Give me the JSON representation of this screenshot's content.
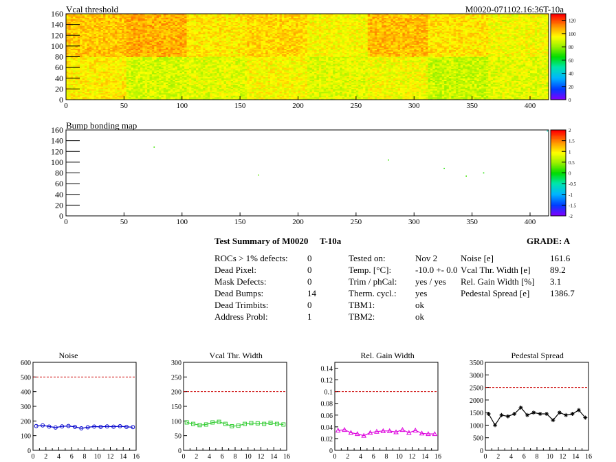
{
  "header": {
    "left_title": "Vcal threshold",
    "right_title": "M0020-071102.16:36T-10a"
  },
  "colors": {
    "frame": "#000000",
    "limit_line": "#cc0000",
    "noise": "#0000cc",
    "vcal": "#33cc33",
    "gain": "#dd00dd",
    "pedestal": "#000000"
  },
  "chart_data": [
    {
      "type": "heatmap",
      "title": "Vcal threshold",
      "x_ticks": [
        "0",
        "50",
        "100",
        "150",
        "200",
        "250",
        "300",
        "350",
        "400"
      ],
      "y_ticks": [
        "0",
        "20",
        "40",
        "60",
        "80",
        "100",
        "120",
        "140",
        "160"
      ],
      "xlim": [
        0,
        416
      ],
      "ylim": [
        0,
        160
      ],
      "z_ticks": [
        "0",
        "20",
        "40",
        "60",
        "80",
        "100",
        "120"
      ],
      "zlim": [
        0,
        130
      ],
      "roc_grid": {
        "cols": 8,
        "rows": 2,
        "roc_cols": 52,
        "roc_rows": 80
      },
      "roc_mean": [
        [
          98,
          90,
          92,
          96,
          92,
          95,
          88,
          92
        ],
        [
          105,
          108,
          99,
          102,
          96,
          106,
          100,
          95
        ]
      ],
      "noise_level": 8
    },
    {
      "type": "heatmap",
      "title": "Bump bonding map",
      "x_ticks": [
        "0",
        "50",
        "100",
        "150",
        "200",
        "250",
        "300",
        "350",
        "400"
      ],
      "y_ticks": [
        "0",
        "20",
        "40",
        "60",
        "80",
        "100",
        "120",
        "140",
        "160"
      ],
      "xlim": [
        0,
        416
      ],
      "ylim": [
        0,
        160
      ],
      "z_ticks": [
        "-2",
        "-1.5",
        "-1",
        "-0.5",
        "0",
        "0.5",
        "1",
        "1.5",
        "2"
      ],
      "zlim": [
        -2,
        2
      ],
      "points": [
        [
          76,
          128,
          0.2
        ],
        [
          166,
          76,
          0.3
        ],
        [
          278,
          104,
          0.2
        ],
        [
          326,
          88,
          0.1
        ],
        [
          345,
          74,
          0.2
        ],
        [
          360,
          80,
          0.1
        ],
        [
          415,
          158,
          -0.6
        ]
      ]
    },
    {
      "type": "line",
      "title": "Noise",
      "x": [
        0,
        1,
        2,
        3,
        4,
        5,
        6,
        7,
        8,
        9,
        10,
        11,
        12,
        13,
        14,
        15
      ],
      "values": [
        165,
        170,
        162,
        155,
        163,
        166,
        160,
        150,
        157,
        162,
        160,
        163,
        161,
        164,
        160,
        158
      ],
      "xlim": [
        0,
        16
      ],
      "ylim": [
        0,
        600
      ],
      "limit": 500,
      "x_ticks": [
        "0",
        "2",
        "4",
        "6",
        "8",
        "10",
        "12",
        "14",
        "16"
      ],
      "y_ticks": [
        "0",
        "100",
        "200",
        "300",
        "400",
        "500",
        "600"
      ],
      "marker": "circle"
    },
    {
      "type": "line",
      "title": "Vcal Thr. Width",
      "x": [
        0,
        1,
        2,
        3,
        4,
        5,
        6,
        7,
        8,
        9,
        10,
        11,
        12,
        13,
        14,
        15
      ],
      "values": [
        95,
        90,
        86,
        88,
        95,
        97,
        90,
        82,
        84,
        90,
        93,
        92,
        90,
        94,
        90,
        88
      ],
      "xlim": [
        0,
        16
      ],
      "ylim": [
        0,
        300
      ],
      "limit": 200,
      "x_ticks": [
        "0",
        "2",
        "4",
        "6",
        "8",
        "10",
        "12",
        "14",
        "16"
      ],
      "y_ticks": [
        "0",
        "50",
        "100",
        "150",
        "200",
        "250",
        "300"
      ],
      "marker": "square"
    },
    {
      "type": "line",
      "title": "Rel. Gain Width",
      "x": [
        0,
        1,
        2,
        3,
        4,
        5,
        6,
        7,
        8,
        9,
        10,
        11,
        12,
        13,
        14,
        15
      ],
      "values": [
        0.034,
        0.035,
        0.03,
        0.028,
        0.025,
        0.03,
        0.032,
        0.033,
        0.033,
        0.031,
        0.035,
        0.03,
        0.034,
        0.029,
        0.028,
        0.028
      ],
      "xlim": [
        0,
        16
      ],
      "ylim": [
        0,
        0.15
      ],
      "limit": 0.1,
      "x_ticks": [
        "0",
        "2",
        "4",
        "6",
        "8",
        "10",
        "12",
        "14",
        "16"
      ],
      "y_ticks": [
        "0",
        "0.02",
        "0.04",
        "0.06",
        "0.08",
        "0.1",
        "0.12",
        "0.14"
      ],
      "y_tick_values": [
        0,
        0.02,
        0.04,
        0.06,
        0.08,
        0.1,
        0.12,
        0.14
      ],
      "marker": "triangle"
    },
    {
      "type": "line",
      "title": "Pedestal Spread",
      "x": [
        0,
        1,
        2,
        3,
        4,
        5,
        6,
        7,
        8,
        9,
        10,
        11,
        12,
        13,
        14,
        15
      ],
      "values": [
        1450,
        1000,
        1400,
        1350,
        1450,
        1700,
        1400,
        1500,
        1450,
        1450,
        1200,
        1500,
        1400,
        1450,
        1600,
        1300
      ],
      "xlim": [
        0,
        16
      ],
      "ylim": [
        0,
        3500
      ],
      "limit": 2500,
      "x_ticks": [
        "0",
        "2",
        "4",
        "6",
        "8",
        "10",
        "12",
        "14",
        "16"
      ],
      "y_ticks": [
        "0",
        "500",
        "1000",
        "1500",
        "2000",
        "2500",
        "3000",
        "3500"
      ],
      "marker": "star"
    }
  ],
  "summary": {
    "title": "Test Summary of M0020",
    "title_suffix": "T-10a",
    "grade": "GRADE:  A",
    "left": [
      {
        "label": "ROCs > 1% defects:",
        "value": "0"
      },
      {
        "label": "Dead Pixel:",
        "value": "0"
      },
      {
        "label": "Mask Defects:",
        "value": "0"
      },
      {
        "label": "Dead Bumps:",
        "value": "14"
      },
      {
        "label": "Dead Trimbits:",
        "value": "0"
      },
      {
        "label": "Address Probl:",
        "value": "1"
      }
    ],
    "middle": [
      {
        "label": "Tested on:",
        "value": "Nov 2"
      },
      {
        "label": "Temp. [°C]:",
        "value": "-10.0 +- 0.0"
      },
      {
        "label": "Trim / phCal:",
        "value": "yes / yes"
      },
      {
        "label": "Therm. cycl.:",
        "value": "yes"
      },
      {
        "label": "TBM1:",
        "value": "ok"
      },
      {
        "label": "TBM2:",
        "value": "ok"
      }
    ],
    "right": [
      {
        "label": "Noise [e]",
        "value": "161.6"
      },
      {
        "label": "Vcal Thr. Width [e]",
        "value": "89.2"
      },
      {
        "label": "Rel. Gain Width [%]",
        "value": "3.1"
      },
      {
        "label": "Pedestal Spread [e]",
        "value": "1386.7"
      }
    ]
  }
}
